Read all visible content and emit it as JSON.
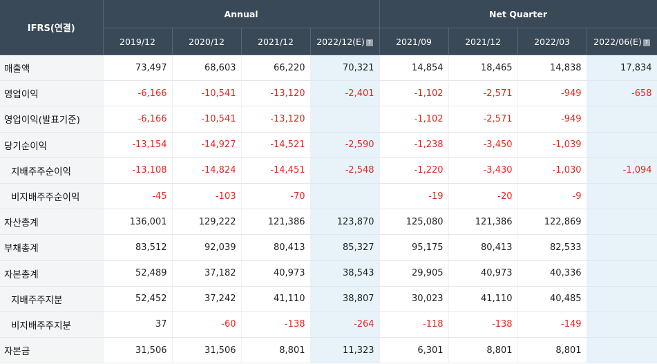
{
  "table": {
    "corner_label": "IFRS(연결)",
    "group_annual": "Annual",
    "group_quarter": "Net Quarter",
    "periods": [
      "2019/12",
      "2020/12",
      "2021/12",
      "2022/12(E)",
      "2021/09",
      "2021/12",
      "2022/03",
      "2022/06(E)"
    ],
    "rows": [
      {
        "label": "매출액",
        "values": [
          "73,497",
          "68,603",
          "66,220",
          "70,321",
          "14,854",
          "18,465",
          "14,838",
          "17,834"
        ]
      },
      {
        "label": "영업이익",
        "values": [
          "-6,166",
          "-10,541",
          "-13,120",
          "-2,401",
          "-1,102",
          "-2,571",
          "-949",
          "-658"
        ]
      },
      {
        "label": "영업이익(발표기준)",
        "values": [
          "-6,166",
          "-10,541",
          "-13,120",
          "",
          "-1,102",
          "-2,571",
          "-949",
          ""
        ]
      },
      {
        "label": "당기순이익",
        "values": [
          "-13,154",
          "-14,927",
          "-14,521",
          "-2,590",
          "-1,238",
          "-3,450",
          "-1,039",
          ""
        ]
      },
      {
        "label": "지배주주순이익",
        "values": [
          "-13,108",
          "-14,824",
          "-14,451",
          "-2,548",
          "-1,220",
          "-3,430",
          "-1,030",
          "-1,094"
        ]
      },
      {
        "label": "비지배주주순이익",
        "values": [
          "-45",
          "-103",
          "-70",
          "",
          "-19",
          "-20",
          "-9",
          ""
        ]
      },
      {
        "label": "자산총계",
        "values": [
          "136,001",
          "129,222",
          "121,386",
          "123,870",
          "125,080",
          "121,386",
          "122,869",
          ""
        ]
      },
      {
        "label": "부채총계",
        "values": [
          "83,512",
          "92,039",
          "80,413",
          "85,327",
          "95,175",
          "80,413",
          "82,533",
          ""
        ]
      },
      {
        "label": "자본총계",
        "values": [
          "52,489",
          "37,182",
          "40,973",
          "38,543",
          "29,905",
          "40,973",
          "40,336",
          ""
        ]
      },
      {
        "label": "지배주주지분",
        "values": [
          "52,452",
          "37,242",
          "41,110",
          "38,807",
          "30,023",
          "41,110",
          "40,485",
          ""
        ]
      },
      {
        "label": "비지배주주지분",
        "values": [
          "37",
          "-60",
          "-138",
          "-264",
          "-118",
          "-138",
          "-149",
          ""
        ]
      },
      {
        "label": "자본금",
        "values": [
          "31,506",
          "31,506",
          "8,801",
          "11,323",
          "6,301",
          "8,801",
          "8,801",
          ""
        ]
      }
    ],
    "sub_rows": [
      4,
      5,
      9,
      10
    ],
    "estimate_columns": [
      3,
      7
    ],
    "colors": {
      "header_bg": "#3a4958",
      "label_bg": "#f4f5f7",
      "estimate_bg": "#e7f3f9",
      "negative_text": "#e0281e"
    },
    "estimate_icon": "help-question-icon"
  }
}
